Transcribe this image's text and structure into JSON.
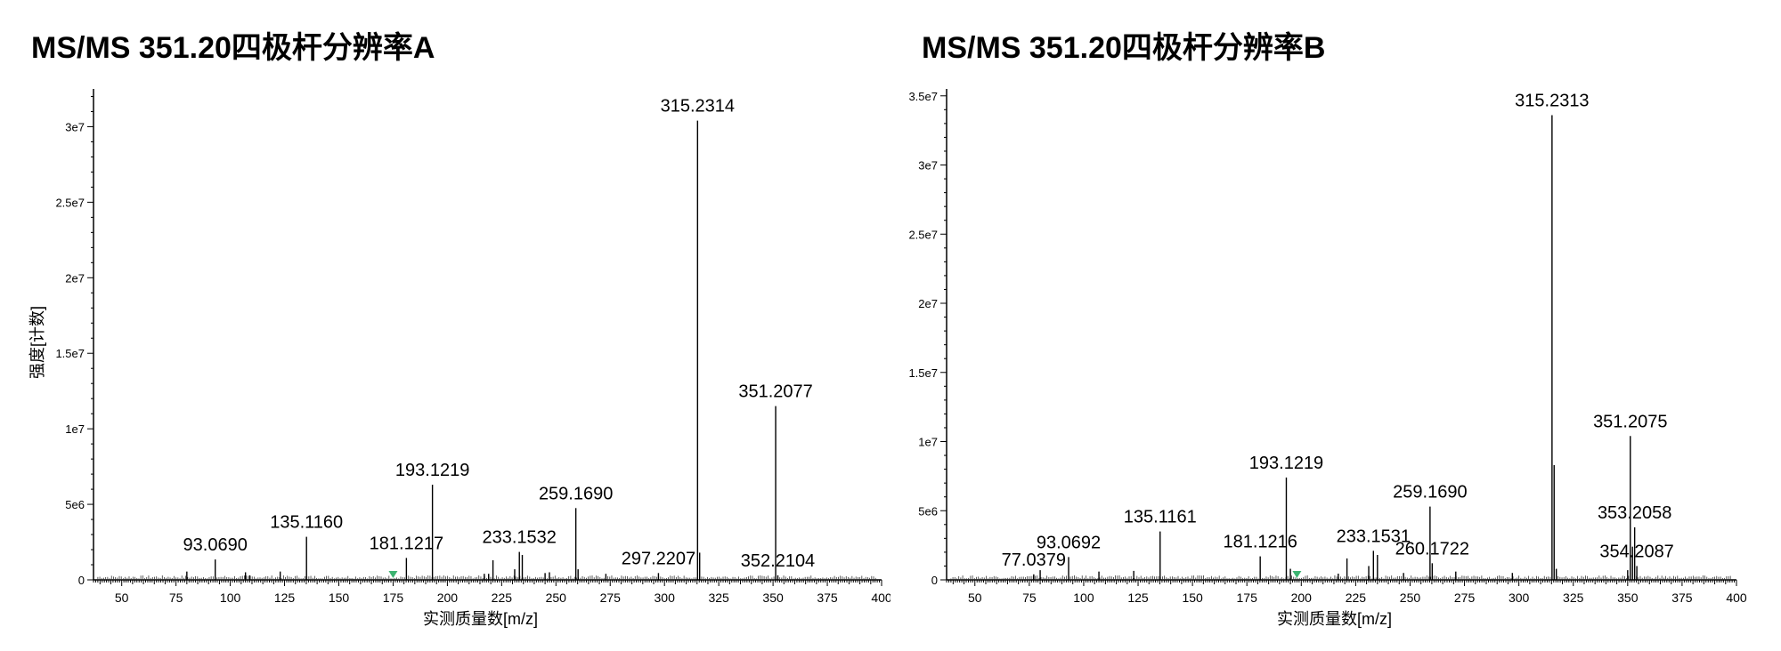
{
  "panels": [
    {
      "title": "MS/MS 351.20四极杆分辨率A"
    },
    {
      "title": "MS/MS 351.20四极杆分辨率B"
    }
  ],
  "chart_data": [
    {
      "type": "bar",
      "title": "MS/MS 351.20四极杆分辨率A",
      "xlabel": "实测质量数[m/z]",
      "ylabel": "强度[计数]",
      "xlim": [
        37,
        400
      ],
      "ylim": [
        0,
        32500000
      ],
      "x_ticks": [
        50,
        75,
        100,
        125,
        150,
        175,
        200,
        225,
        250,
        275,
        300,
        325,
        350,
        375,
        400
      ],
      "y_ticks": [
        0,
        5000000,
        10000000,
        15000000,
        20000000,
        25000000,
        30000000
      ],
      "y_tick_labels": [
        "0",
        "5e6",
        "1e7",
        "1.5e7",
        "2e7",
        "2.5e7",
        "3e7"
      ],
      "grid": false,
      "precursor_marker_mz": 175,
      "peaks": [
        {
          "mz": 315.2314,
          "intensity": 30400000,
          "label": "315.2314"
        },
        {
          "mz": 351.2077,
          "intensity": 11500000,
          "label": "351.2077"
        },
        {
          "mz": 193.1219,
          "intensity": 6300000,
          "label": "193.1219"
        },
        {
          "mz": 259.169,
          "intensity": 4750000,
          "label": "259.1690"
        },
        {
          "mz": 135.116,
          "intensity": 2850000,
          "label": "135.1160"
        },
        {
          "mz": 233.1532,
          "intensity": 1850000,
          "label": "233.1532"
        },
        {
          "mz": 234.5,
          "intensity": 1650000,
          "label": ""
        },
        {
          "mz": 93.069,
          "intensity": 1350000,
          "label": "93.0690"
        },
        {
          "mz": 181.1217,
          "intensity": 1450000,
          "label": "181.1217"
        },
        {
          "mz": 221.0,
          "intensity": 1300000,
          "label": ""
        },
        {
          "mz": 297.2207,
          "intensity": 450000,
          "label": "297.2207"
        },
        {
          "mz": 352.2104,
          "intensity": 300000,
          "label": "352.2104"
        },
        {
          "mz": 316.2,
          "intensity": 1800000,
          "label": ""
        },
        {
          "mz": 80.0,
          "intensity": 550000,
          "label": ""
        },
        {
          "mz": 107.0,
          "intensity": 500000,
          "label": ""
        },
        {
          "mz": 109.0,
          "intensity": 300000,
          "label": ""
        },
        {
          "mz": 123.0,
          "intensity": 550000,
          "label": ""
        },
        {
          "mz": 217.0,
          "intensity": 400000,
          "label": ""
        },
        {
          "mz": 219.0,
          "intensity": 400000,
          "label": ""
        },
        {
          "mz": 231.0,
          "intensity": 700000,
          "label": ""
        },
        {
          "mz": 245.0,
          "intensity": 450000,
          "label": ""
        },
        {
          "mz": 247.0,
          "intensity": 500000,
          "label": ""
        },
        {
          "mz": 273.0,
          "intensity": 400000,
          "label": ""
        },
        {
          "mz": 260.2,
          "intensity": 700000,
          "label": ""
        }
      ]
    },
    {
      "type": "bar",
      "title": "MS/MS 351.20四极杆分辨率B",
      "xlabel": "实测质量数[m/z]",
      "ylabel": "",
      "xlim": [
        37,
        400
      ],
      "ylim": [
        0,
        35500000
      ],
      "x_ticks": [
        50,
        75,
        100,
        125,
        150,
        175,
        200,
        225,
        250,
        275,
        300,
        325,
        350,
        375,
        400
      ],
      "y_ticks": [
        0,
        5000000,
        10000000,
        15000000,
        20000000,
        25000000,
        30000000,
        35000000
      ],
      "y_tick_labels": [
        "0",
        "5e6",
        "1e7",
        "1.5e7",
        "2e7",
        "2.5e7",
        "3e7",
        "3.5e7"
      ],
      "grid": false,
      "precursor_marker_mz": 198,
      "peaks": [
        {
          "mz": 315.2313,
          "intensity": 33600000,
          "label": "315.2313"
        },
        {
          "mz": 351.2075,
          "intensity": 10400000,
          "label": "351.2075"
        },
        {
          "mz": 193.1219,
          "intensity": 7400000,
          "label": "193.1219"
        },
        {
          "mz": 259.169,
          "intensity": 5300000,
          "label": "259.1690"
        },
        {
          "mz": 353.2058,
          "intensity": 3800000,
          "label": "353.2058"
        },
        {
          "mz": 135.1161,
          "intensity": 3500000,
          "label": "135.1161"
        },
        {
          "mz": 233.1531,
          "intensity": 2100000,
          "label": "233.1531"
        },
        {
          "mz": 354.2087,
          "intensity": 1000000,
          "label": "354.2087"
        },
        {
          "mz": 260.1722,
          "intensity": 1200000,
          "label": "260.1722"
        },
        {
          "mz": 93.0692,
          "intensity": 1650000,
          "label": "93.0692"
        },
        {
          "mz": 181.1216,
          "intensity": 1700000,
          "label": "181.1216"
        },
        {
          "mz": 77.0379,
          "intensity": 400000,
          "label": "77.0379"
        },
        {
          "mz": 316.2,
          "intensity": 8300000,
          "label": ""
        },
        {
          "mz": 352.2,
          "intensity": 2400000,
          "label": ""
        },
        {
          "mz": 317.2,
          "intensity": 800000,
          "label": ""
        },
        {
          "mz": 235.0,
          "intensity": 1800000,
          "label": ""
        },
        {
          "mz": 221.0,
          "intensity": 1550000,
          "label": ""
        },
        {
          "mz": 231.0,
          "intensity": 1000000,
          "label": ""
        },
        {
          "mz": 195.0,
          "intensity": 800000,
          "label": ""
        },
        {
          "mz": 80.0,
          "intensity": 700000,
          "label": ""
        },
        {
          "mz": 107.0,
          "intensity": 600000,
          "label": ""
        },
        {
          "mz": 123.0,
          "intensity": 650000,
          "label": ""
        },
        {
          "mz": 217.0,
          "intensity": 450000,
          "label": ""
        },
        {
          "mz": 247.0,
          "intensity": 500000,
          "label": ""
        },
        {
          "mz": 271.0,
          "intensity": 600000,
          "label": ""
        },
        {
          "mz": 297.0,
          "intensity": 500000,
          "label": ""
        },
        {
          "mz": 350.0,
          "intensity": 700000,
          "label": ""
        }
      ]
    }
  ]
}
